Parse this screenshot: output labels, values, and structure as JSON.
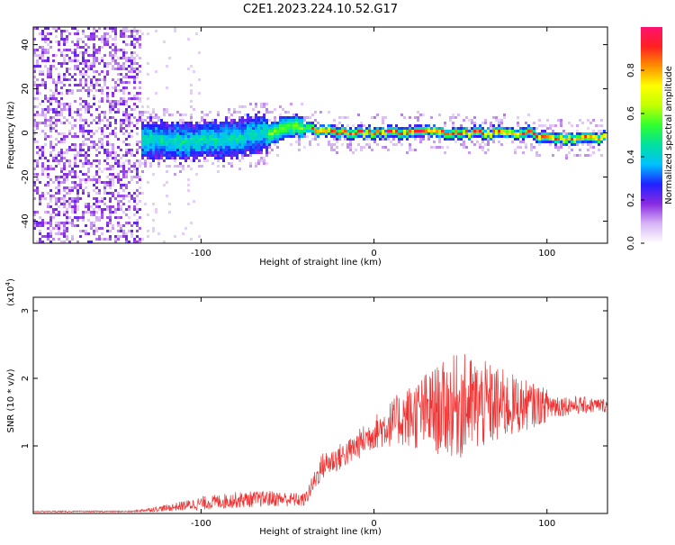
{
  "title": "C2E1.2023.224.10.52.G17",
  "chart_data": [
    {
      "type": "heatmap",
      "xlabel": "Height of straight line (km)",
      "ylabel": "Frequency (Hz)",
      "xlim": [
        -197,
        135
      ],
      "ylim": [
        -50,
        48
      ],
      "xticks": [
        -100,
        0,
        100
      ],
      "yticks": [
        -40,
        -20,
        0,
        20,
        40
      ],
      "colorbar": {
        "label": "Normalized spectral amplitude",
        "range": [
          0,
          1
        ],
        "ticks": [
          0.0,
          0.2,
          0.4,
          0.6,
          0.8
        ],
        "colormap": [
          "#ffffff",
          "#d7b4f5",
          "#8a2be2",
          "#2020ff",
          "#00c0ff",
          "#00e0a0",
          "#30ff30",
          "#c0ff00",
          "#ffff00",
          "#ff9000",
          "#ff2020",
          "#ff1070"
        ]
      },
      "description_values": {
        "ridge_center_hz": [
          {
            "x": -135,
            "y": -3
          },
          {
            "x": -110,
            "y": -4
          },
          {
            "x": -90,
            "y": -3
          },
          {
            "x": -70,
            "y": -1
          },
          {
            "x": -55,
            "y": 1
          },
          {
            "x": -45,
            "y": 3
          },
          {
            "x": -30,
            "y": 1
          },
          {
            "x": -10,
            "y": 0
          },
          {
            "x": 10,
            "y": 0
          },
          {
            "x": 30,
            "y": 1
          },
          {
            "x": 50,
            "y": 0
          },
          {
            "x": 70,
            "y": 0
          },
          {
            "x": 90,
            "y": 0
          },
          {
            "x": 105,
            "y": -3
          },
          {
            "x": 135,
            "y": -2
          }
        ],
        "noisy_region_x": [
          -197,
          -135
        ]
      }
    },
    {
      "type": "line",
      "xlabel": "Height of straight line (km)",
      "ylabel": "SNR (10 * v/v)",
      "y_multiplier_label": "(x10",
      "y_multiplier_exp": "4",
      "y_multiplier_close": ")",
      "xlim": [
        -197,
        135
      ],
      "ylim": [
        0,
        3.2
      ],
      "xticks": [
        -100,
        0,
        100
      ],
      "yticks": [
        1,
        2,
        3
      ],
      "series": [
        {
          "color": "#ee3333",
          "envelope": [
            {
              "x": -197,
              "mean": 0.03,
              "spread": 0.01
            },
            {
              "x": -140,
              "mean": 0.03,
              "spread": 0.01
            },
            {
              "x": -120,
              "mean": 0.08,
              "spread": 0.05
            },
            {
              "x": -100,
              "mean": 0.15,
              "spread": 0.1
            },
            {
              "x": -80,
              "mean": 0.2,
              "spread": 0.12
            },
            {
              "x": -60,
              "mean": 0.22,
              "spread": 0.12
            },
            {
              "x": -40,
              "mean": 0.2,
              "spread": 0.1
            },
            {
              "x": -30,
              "mean": 0.7,
              "spread": 0.2
            },
            {
              "x": -15,
              "mean": 0.9,
              "spread": 0.2
            },
            {
              "x": 0,
              "mean": 1.2,
              "spread": 0.25
            },
            {
              "x": 15,
              "mean": 1.4,
              "spread": 0.4
            },
            {
              "x": 30,
              "mean": 1.5,
              "spread": 0.6
            },
            {
              "x": 50,
              "mean": 1.6,
              "spread": 0.8
            },
            {
              "x": 70,
              "mean": 1.6,
              "spread": 0.6
            },
            {
              "x": 90,
              "mean": 1.6,
              "spread": 0.35
            },
            {
              "x": 110,
              "mean": 1.6,
              "spread": 0.15
            },
            {
              "x": 135,
              "mean": 1.6,
              "spread": 0.1
            }
          ]
        }
      ]
    }
  ]
}
